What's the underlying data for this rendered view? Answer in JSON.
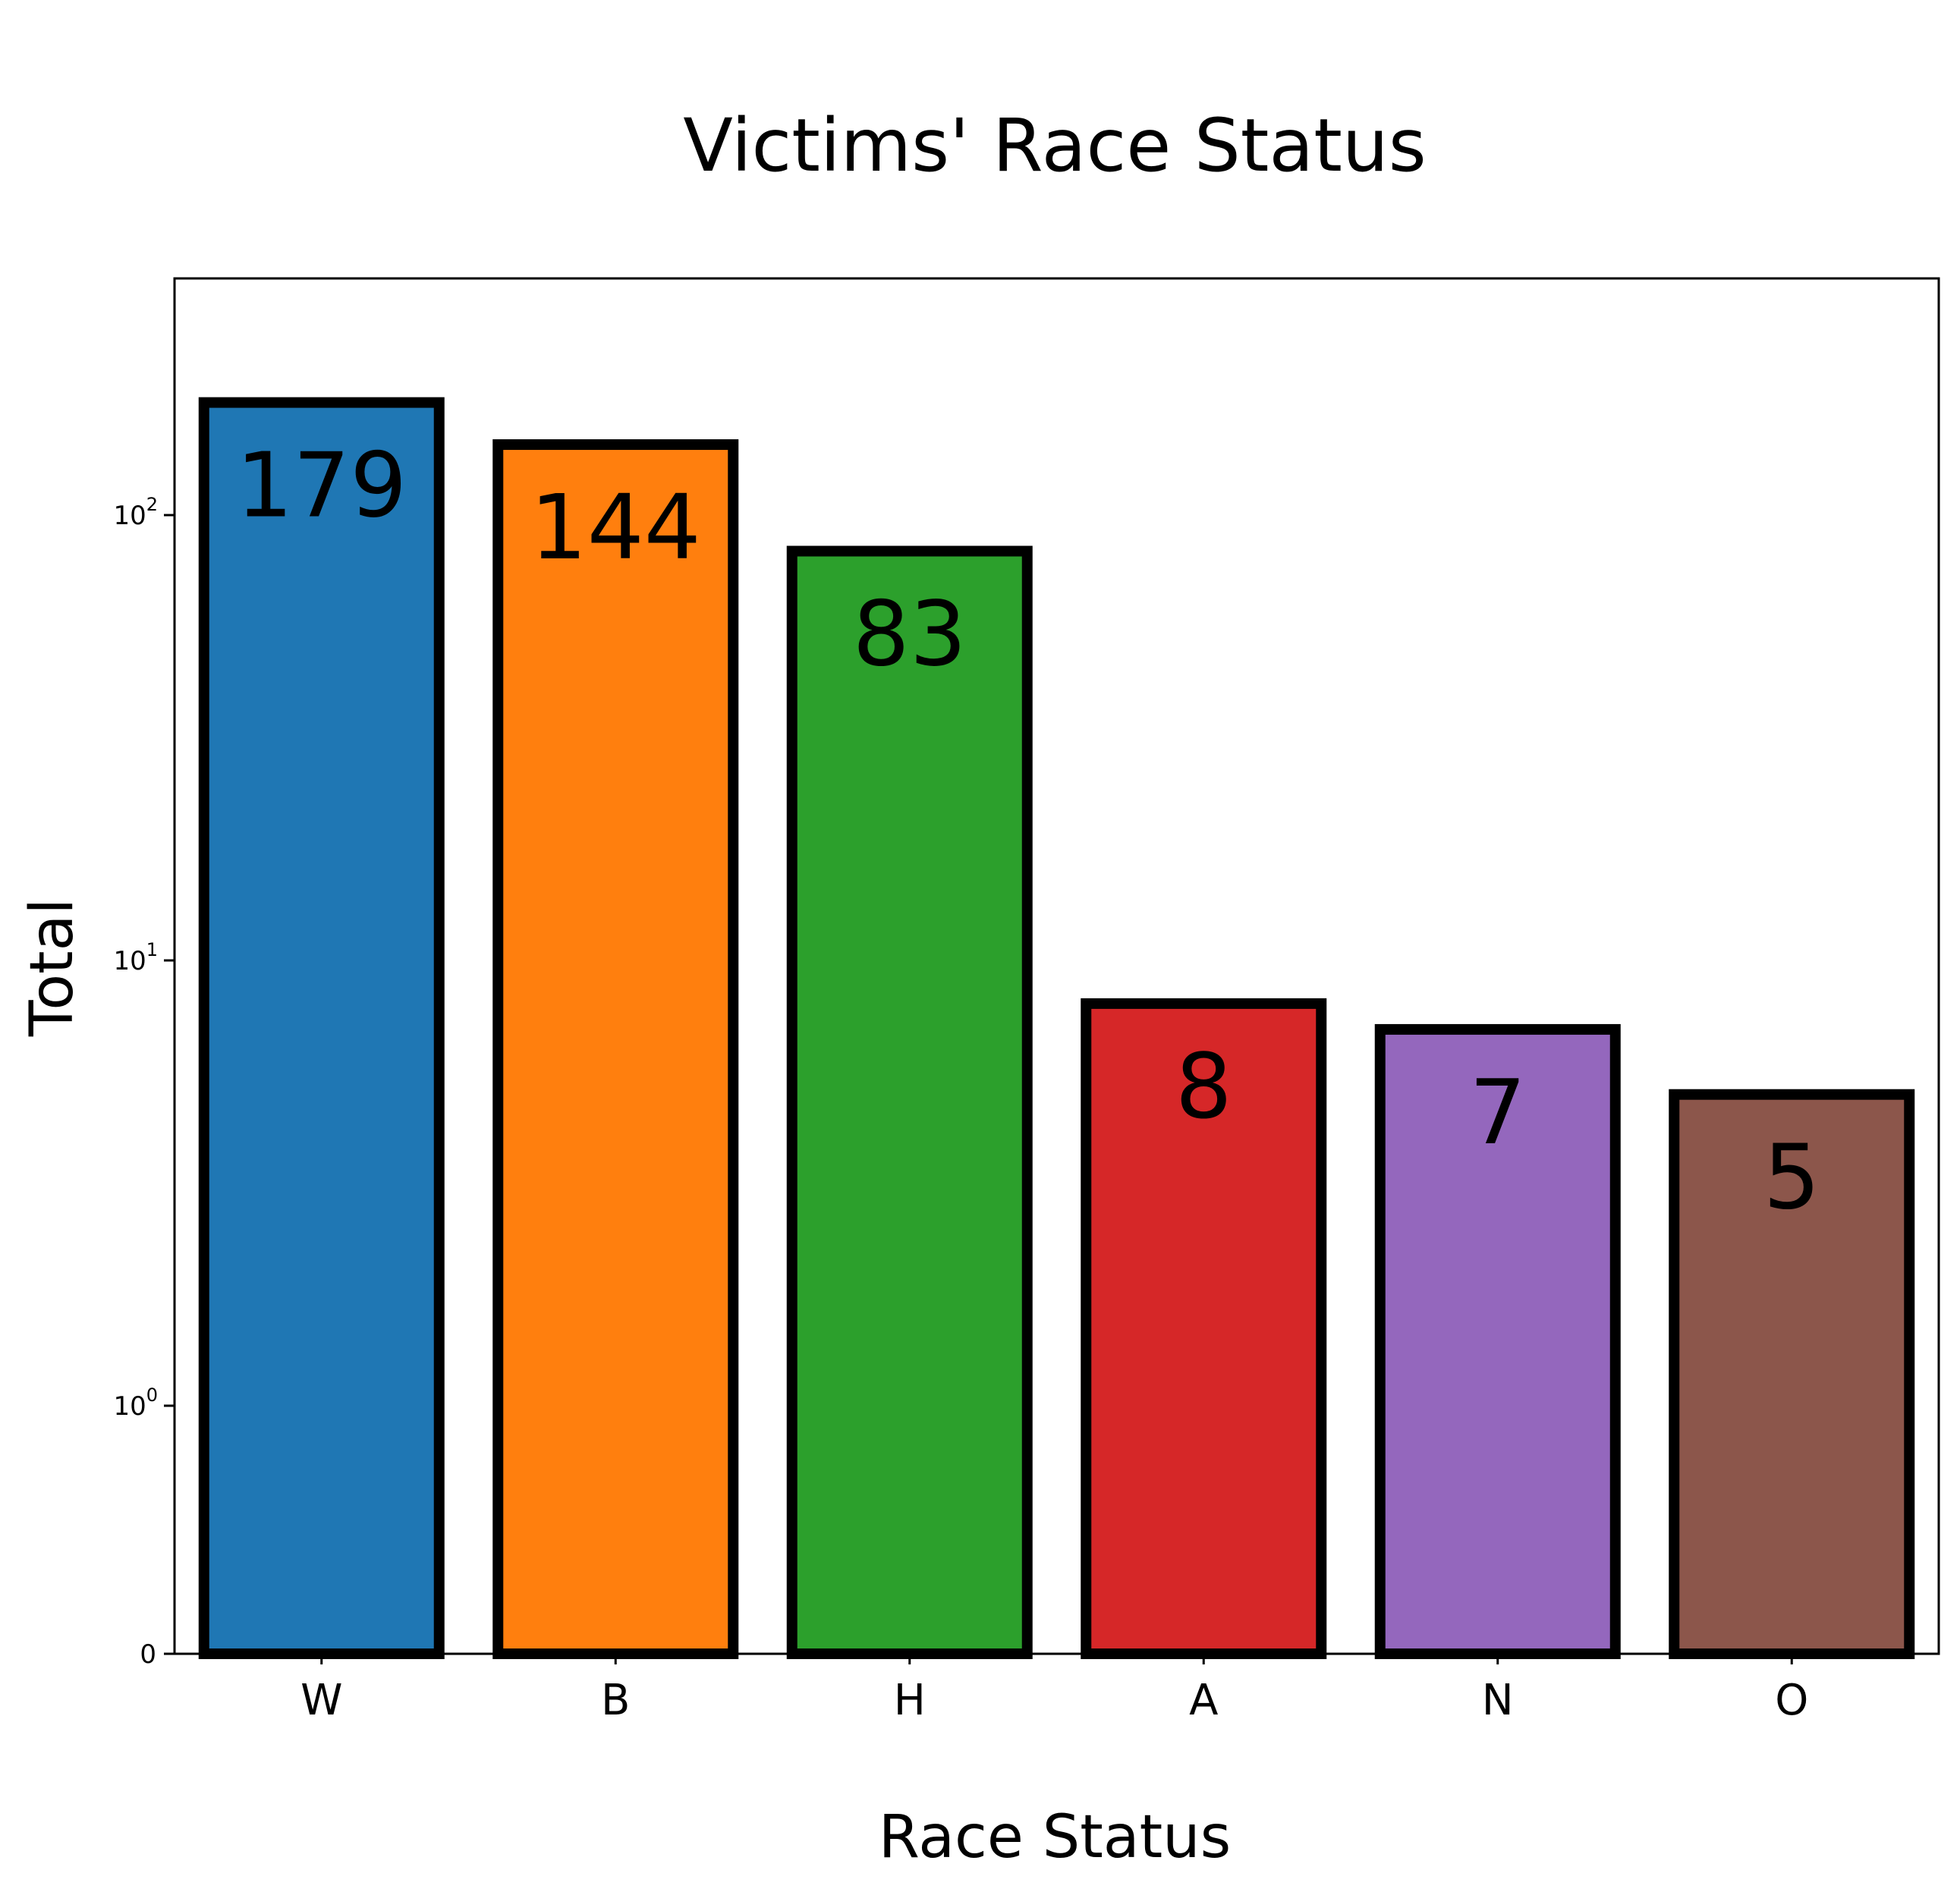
{
  "chart_data": {
    "type": "bar",
    "title": "Victims' Race Status",
    "xlabel": "Race Status",
    "ylabel": "Total",
    "categories": [
      "W",
      "B",
      "H",
      "A",
      "N",
      "O"
    ],
    "values": [
      179,
      144,
      83,
      8,
      7,
      5
    ],
    "data_labels": [
      "179",
      "144",
      "83",
      "8",
      "7",
      "5"
    ],
    "colors": [
      "#1f77b4",
      "#ff7f0e",
      "#2ca02c",
      "#d62728",
      "#9467bd",
      "#8c564b"
    ],
    "edge_color": "#000000",
    "yscale": "symlog",
    "ylim": [
      0,
      200
    ],
    "yticks": [
      {
        "value": 0,
        "base": "0",
        "exp": ""
      },
      {
        "value": 1,
        "base": "10",
        "exp": "0"
      },
      {
        "value": 10,
        "base": "10",
        "exp": "1"
      },
      {
        "value": 100,
        "base": "10",
        "exp": "2"
      }
    ],
    "grid": false,
    "legend": "none"
  }
}
